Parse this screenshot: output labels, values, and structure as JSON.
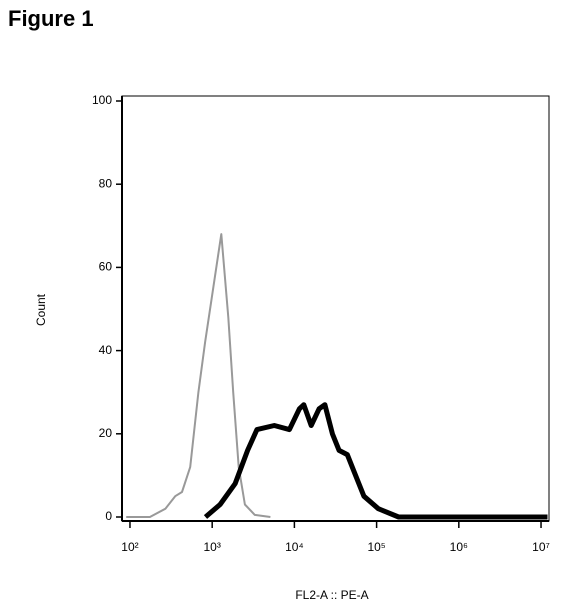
{
  "chart_data": {
    "type": "line",
    "title": "Figure 1",
    "x_label": "FL2-A :: PE-A",
    "y_label": "Count",
    "log_x": true,
    "xlim": [
      80,
      12500000
    ],
    "xticks": [
      {
        "value": 100,
        "label": "10²"
      },
      {
        "value": 1000,
        "label": "10³"
      },
      {
        "value": 10000,
        "label": "10⁴"
      },
      {
        "value": 100000,
        "label": "10⁵"
      },
      {
        "value": 1000000,
        "label": "10⁶"
      },
      {
        "value": 10000000,
        "label": "10⁷"
      }
    ],
    "ylim": [
      0,
      100
    ],
    "yticks": [
      0,
      20,
      40,
      60,
      80,
      100
    ],
    "series": [
      {
        "color": "#999999",
        "width": 2,
        "x": [
          90,
          175,
          270,
          355,
          430,
          540,
          680,
          820,
          1030,
          1290,
          1570,
          1800,
          2100,
          2500,
          3300,
          5100
        ],
        "values": [
          0,
          0,
          2,
          5,
          6,
          12,
          30,
          42,
          55,
          68,
          48,
          30,
          12,
          3,
          0.5,
          0
        ]
      },
      {
        "color": "#000000",
        "width": 5,
        "x": [
          830,
          1250,
          1900,
          2700,
          3500,
          5700,
          8700,
          11500,
          13000,
          16000,
          20000,
          23500,
          29000,
          35000,
          44000,
          53000,
          70000,
          105000,
          185000,
          12000000
        ],
        "values": [
          0,
          3,
          8,
          16,
          21,
          22,
          21,
          26,
          27,
          22,
          26,
          27,
          20,
          16,
          15,
          11,
          5,
          2,
          0,
          0
        ]
      }
    ]
  }
}
